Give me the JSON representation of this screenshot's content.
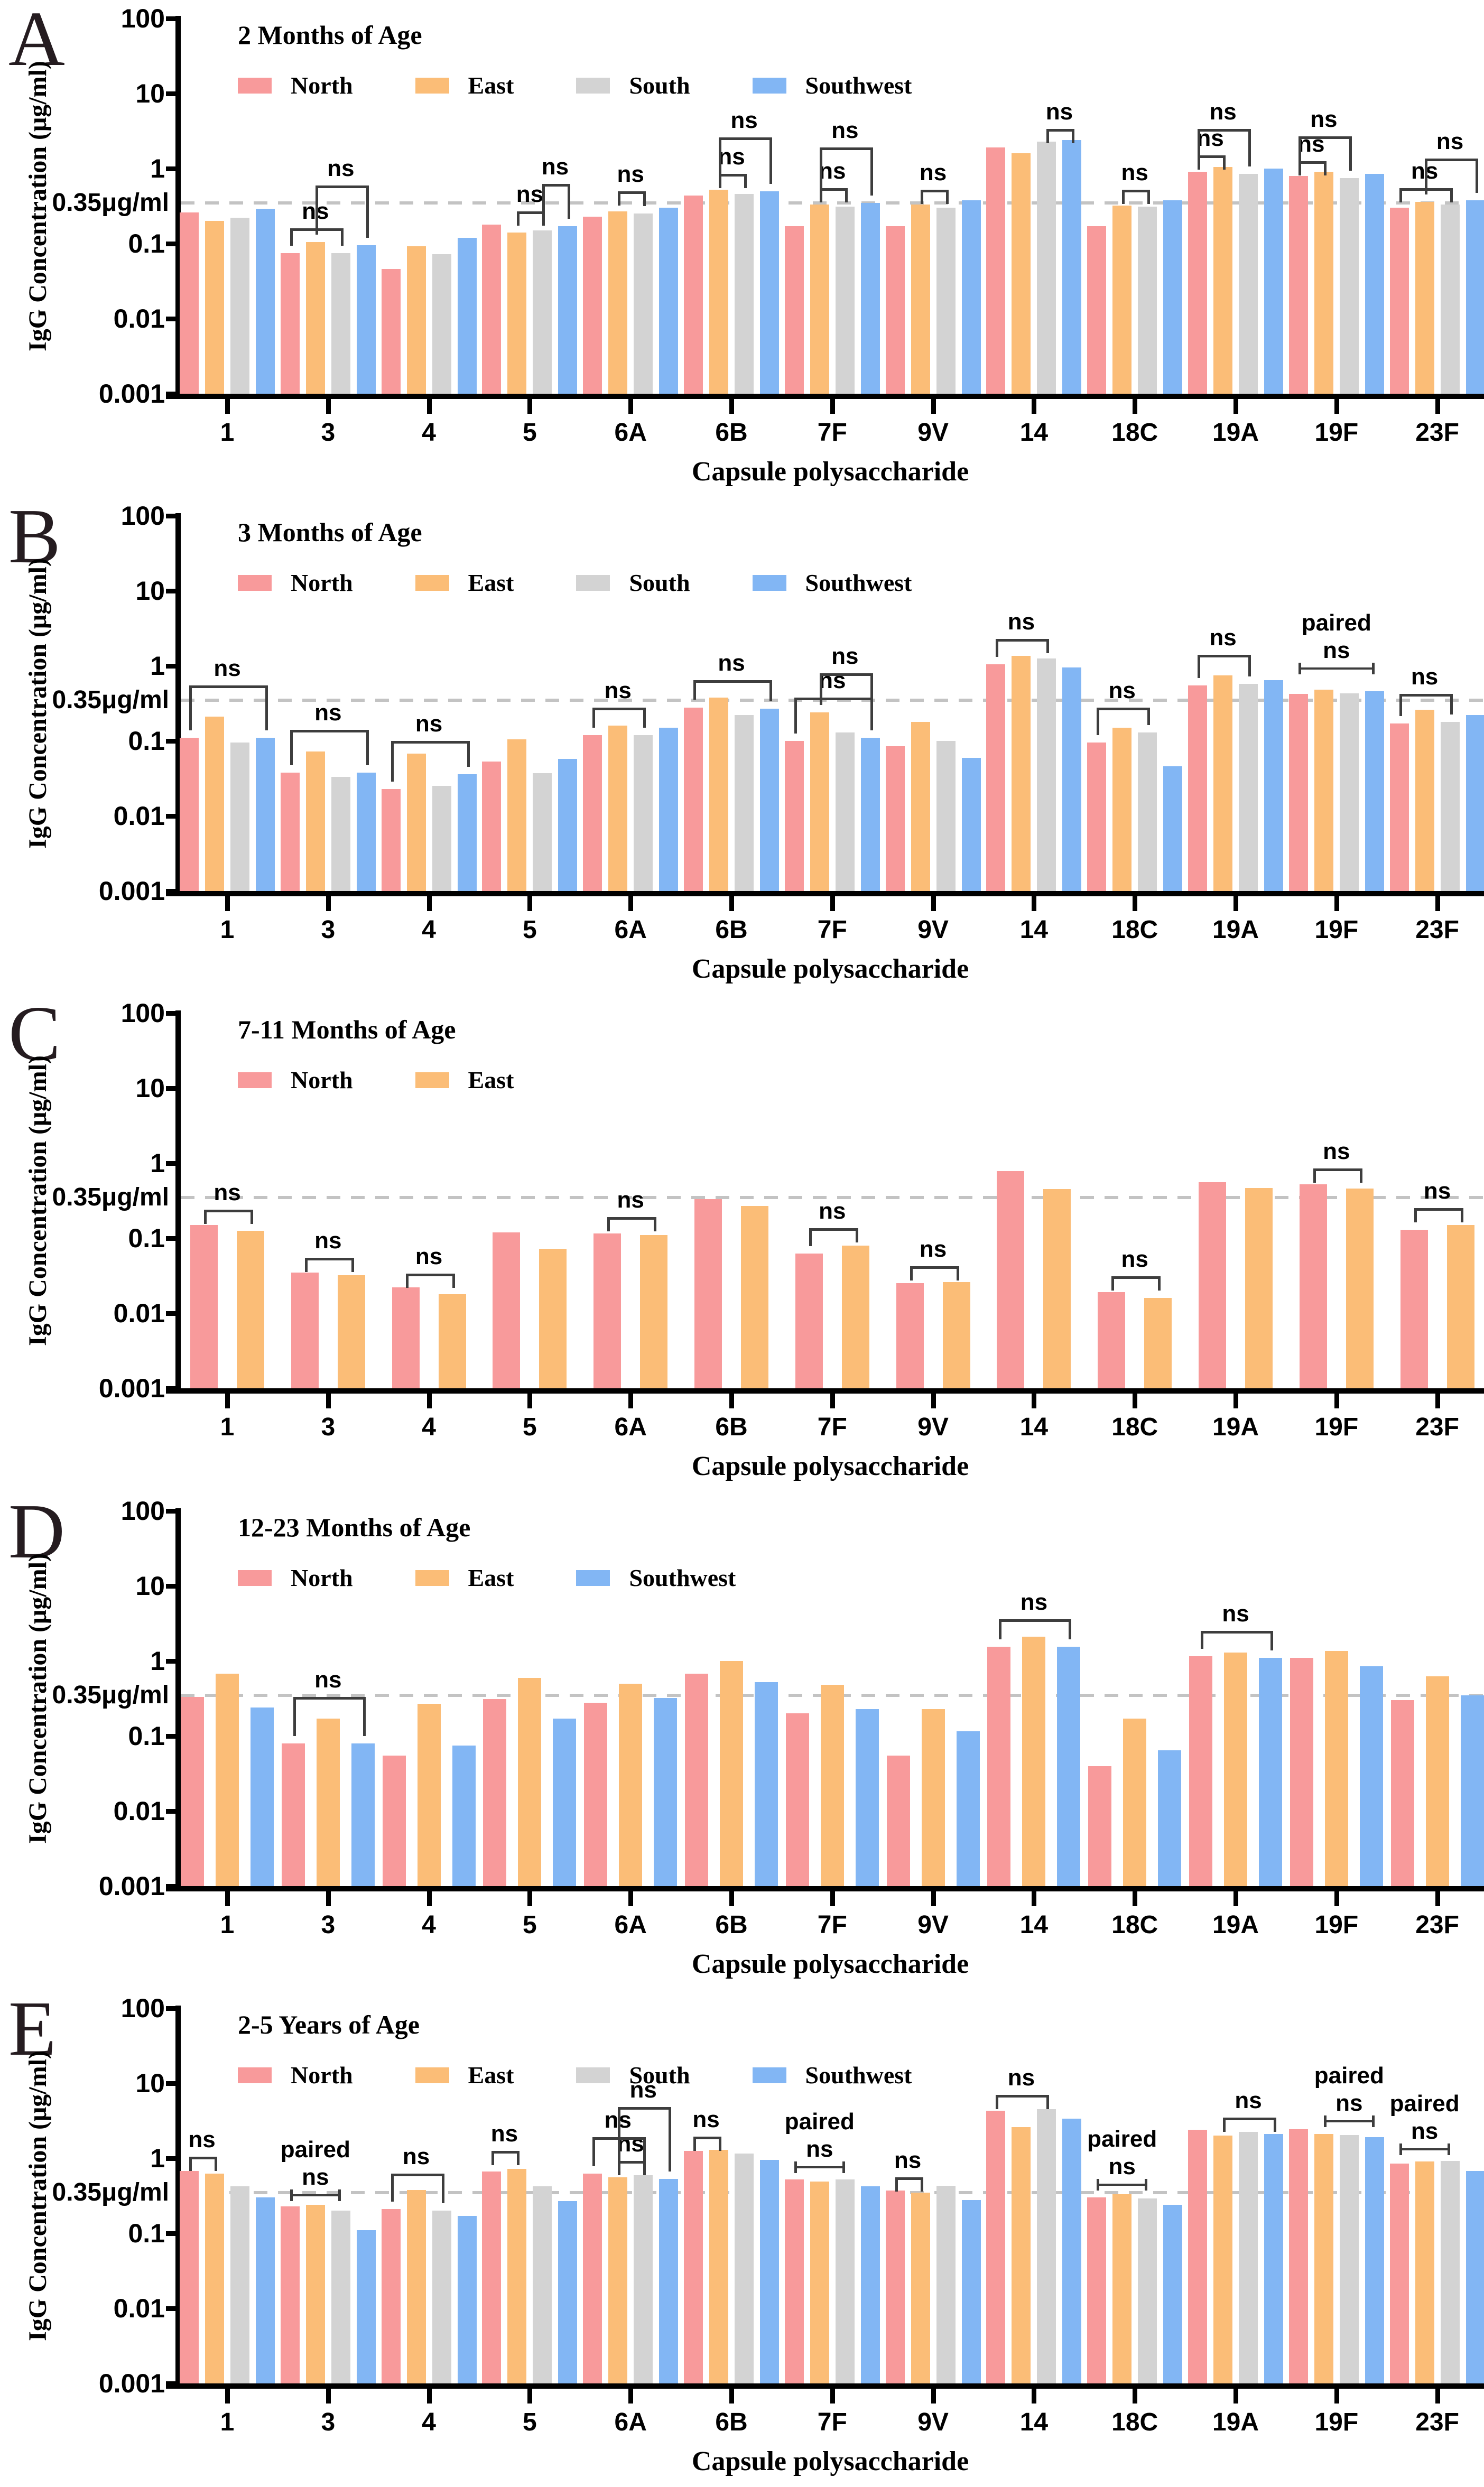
{
  "figure": {
    "y_axis_label": "IgG Concentration (μg/ml)",
    "x_axis_label": "Capsule polysaccharide",
    "threshold_label": "0.35μg/ml",
    "threshold_value": 0.35,
    "y_ticks": [
      "100",
      "10",
      "1",
      "0.1",
      "0.01",
      "0.001"
    ],
    "ylim": [
      0.001,
      100
    ],
    "grid": "off",
    "legend_position": "top-left-inside",
    "categories": [
      "1",
      "3",
      "4",
      "5",
      "6A",
      "6B",
      "7F",
      "9V",
      "14",
      "18C",
      "19A",
      "19F",
      "23F"
    ],
    "series_colors": {
      "North": "#F89A9B",
      "East": "#FBBD77",
      "South": "#D3D3D3",
      "Southwest": "#82B6F4"
    },
    "threshold_color": "#c3c3c3",
    "axis_color": "#000000",
    "annotation_color": "#3d3d3d"
  },
  "chart_data": [
    {
      "panel": "A",
      "type": "bar",
      "title": "2 Months of Age",
      "yscale": "log",
      "categories": [
        "1",
        "3",
        "4",
        "5",
        "6A",
        "6B",
        "7F",
        "9V",
        "14",
        "18C",
        "19A",
        "19F",
        "23F"
      ],
      "series": [
        {
          "name": "North",
          "values": [
            0.26,
            0.075,
            0.046,
            0.18,
            0.23,
            0.44,
            0.17,
            0.17,
            1.9,
            0.17,
            0.9,
            0.8,
            0.3
          ]
        },
        {
          "name": "East",
          "values": [
            0.2,
            0.105,
            0.092,
            0.14,
            0.27,
            0.52,
            0.33,
            0.33,
            1.6,
            0.32,
            1.05,
            0.9,
            0.36
          ]
        },
        {
          "name": "South",
          "values": [
            0.22,
            0.075,
            0.072,
            0.15,
            0.25,
            0.46,
            0.31,
            0.3,
            2.3,
            0.31,
            0.85,
            0.75,
            0.33
          ]
        },
        {
          "name": "Southwest",
          "values": [
            0.29,
            0.095,
            0.12,
            0.17,
            0.3,
            0.5,
            0.35,
            0.38,
            2.4,
            0.38,
            1.0,
            0.85,
            0.38
          ]
        }
      ],
      "annotations": [
        {
          "cat": "3",
          "from": "North",
          "to": "South",
          "y": 0.16,
          "label": "ns",
          "style": "bracket"
        },
        {
          "cat": "3",
          "from": "East",
          "to": "Southwest",
          "y": 0.6,
          "label": "ns",
          "style": "bracket"
        },
        {
          "cat": "5",
          "from": "East",
          "to": "South",
          "y": 0.27,
          "label": "ns",
          "style": "bracket"
        },
        {
          "cat": "5",
          "from": "South",
          "to": "Southwest",
          "y": 0.62,
          "label": "ns",
          "style": "bracket"
        },
        {
          "cat": "6A",
          "from": "East",
          "to": "South",
          "y": 0.5,
          "label": "ns",
          "style": "bracket"
        },
        {
          "cat": "6B",
          "from": "East",
          "to": "South",
          "y": 0.85,
          "label": "ns",
          "style": "bracket"
        },
        {
          "cat": "6B",
          "from": "East",
          "to": "Southwest",
          "y": 2.6,
          "label": "ns",
          "style": "bracket"
        },
        {
          "cat": "7F",
          "from": "East",
          "to": "South",
          "y": 0.55,
          "label": "ns",
          "style": "bracket"
        },
        {
          "cat": "7F",
          "from": "East",
          "to": "Southwest",
          "y": 1.9,
          "label": "ns",
          "style": "bracket"
        },
        {
          "cat": "9V",
          "from": "East",
          "to": "South",
          "y": 0.52,
          "label": "ns",
          "style": "bracket"
        },
        {
          "cat": "14",
          "from": "South",
          "to": "Southwest",
          "y": 3.4,
          "label": "ns",
          "style": "bracket"
        },
        {
          "cat": "18C",
          "from": "East",
          "to": "South",
          "y": 0.52,
          "label": "ns",
          "style": "bracket"
        },
        {
          "cat": "19A",
          "from": "North",
          "to": "East",
          "y": 1.5,
          "label": "ns",
          "style": "bracket"
        },
        {
          "cat": "19A",
          "from": "North",
          "to": "South",
          "y": 3.4,
          "label": "ns",
          "style": "bracket"
        },
        {
          "cat": "19F",
          "from": "North",
          "to": "East",
          "y": 1.25,
          "label": "ns",
          "style": "bracket"
        },
        {
          "cat": "19F",
          "from": "North",
          "to": "South",
          "y": 2.7,
          "label": "ns",
          "style": "bracket"
        },
        {
          "cat": "23F",
          "from": "North",
          "to": "South",
          "y": 0.55,
          "label": "ns",
          "style": "bracket"
        },
        {
          "cat": "23F",
          "from": "East",
          "to": "Southwest",
          "y": 1.35,
          "label": "ns",
          "style": "bracket"
        }
      ]
    },
    {
      "panel": "B",
      "type": "bar",
      "title": "3 Months of Age",
      "yscale": "log",
      "categories": [
        "1",
        "3",
        "4",
        "5",
        "6A",
        "6B",
        "7F",
        "9V",
        "14",
        "18C",
        "19A",
        "19F",
        "23F"
      ],
      "series": [
        {
          "name": "North",
          "values": [
            0.11,
            0.038,
            0.023,
            0.053,
            0.12,
            0.28,
            0.1,
            0.085,
            1.05,
            0.095,
            0.55,
            0.42,
            0.17
          ]
        },
        {
          "name": "East",
          "values": [
            0.21,
            0.072,
            0.068,
            0.105,
            0.16,
            0.38,
            0.24,
            0.18,
            1.35,
            0.15,
            0.75,
            0.48,
            0.26
          ]
        },
        {
          "name": "South",
          "values": [
            0.095,
            0.033,
            0.025,
            0.037,
            0.12,
            0.22,
            0.13,
            0.1,
            1.25,
            0.13,
            0.58,
            0.43,
            0.18
          ]
        },
        {
          "name": "Southwest",
          "values": [
            0.11,
            0.038,
            0.036,
            0.058,
            0.15,
            0.27,
            0.11,
            0.06,
            0.95,
            0.046,
            0.65,
            0.46,
            0.22
          ]
        }
      ],
      "annotations": [
        {
          "cat": "1",
          "from": "North",
          "to": "Southwest",
          "y": 0.55,
          "label": "ns",
          "style": "bracket"
        },
        {
          "cat": "3",
          "from": "North",
          "to": "Southwest",
          "y": 0.14,
          "label": "ns",
          "style": "bracket"
        },
        {
          "cat": "4",
          "from": "North",
          "to": "Southwest",
          "y": 0.1,
          "label": "ns",
          "style": "bracket"
        },
        {
          "cat": "6A",
          "from": "North",
          "to": "South",
          "y": 0.28,
          "label": "ns",
          "style": "bracket"
        },
        {
          "cat": "6B",
          "from": "North",
          "to": "Southwest",
          "y": 0.65,
          "label": "ns",
          "style": "bracket"
        },
        {
          "cat": "7F",
          "from": "North",
          "to": "Southwest",
          "y": 0.38,
          "label": "ns",
          "style": "bracket"
        },
        {
          "cat": "7F",
          "from": "East",
          "to": "Southwest",
          "y": 0.8,
          "label": "ns",
          "style": "bracket"
        },
        {
          "cat": "14",
          "from": "North",
          "to": "South",
          "y": 2.3,
          "label": "ns",
          "style": "bracket"
        },
        {
          "cat": "18C",
          "from": "North",
          "to": "South",
          "y": 0.28,
          "label": "ns",
          "style": "bracket"
        },
        {
          "cat": "19A",
          "from": "North",
          "to": "South",
          "y": 1.4,
          "label": "ns",
          "style": "bracket"
        },
        {
          "cat": "19F",
          "from": "North",
          "to": "Southwest",
          "y": 0.95,
          "label": "paired ns",
          "style": "line"
        },
        {
          "cat": "23F",
          "from": "North",
          "to": "South",
          "y": 0.42,
          "label": "ns",
          "style": "bracket"
        }
      ]
    },
    {
      "panel": "C",
      "type": "bar",
      "title": "7-11 Months of Age",
      "yscale": "log",
      "categories": [
        "1",
        "3",
        "4",
        "5",
        "6A",
        "6B",
        "7F",
        "9V",
        "14",
        "18C",
        "19A",
        "19F",
        "23F"
      ],
      "series": [
        {
          "name": "North",
          "values": [
            0.15,
            0.035,
            0.022,
            0.12,
            0.115,
            0.33,
            0.062,
            0.025,
            0.78,
            0.019,
            0.56,
            0.52,
            0.13
          ]
        },
        {
          "name": "East",
          "values": [
            0.125,
            0.032,
            0.018,
            0.072,
            0.11,
            0.27,
            0.08,
            0.026,
            0.45,
            0.016,
            0.47,
            0.46,
            0.15
          ]
        }
      ],
      "annotations": [
        {
          "cat": "1",
          "from": "North",
          "to": "East",
          "y": 0.24,
          "label": "ns",
          "style": "bracket"
        },
        {
          "cat": "3",
          "from": "North",
          "to": "East",
          "y": 0.055,
          "label": "ns",
          "style": "bracket"
        },
        {
          "cat": "4",
          "from": "North",
          "to": "East",
          "y": 0.034,
          "label": "ns",
          "style": "bracket"
        },
        {
          "cat": "6A",
          "from": "North",
          "to": "East",
          "y": 0.19,
          "label": "ns",
          "style": "bracket"
        },
        {
          "cat": "7F",
          "from": "North",
          "to": "East",
          "y": 0.135,
          "label": "ns",
          "style": "bracket"
        },
        {
          "cat": "9V",
          "from": "North",
          "to": "East",
          "y": 0.042,
          "label": "ns",
          "style": "bracket"
        },
        {
          "cat": "18C",
          "from": "North",
          "to": "East",
          "y": 0.031,
          "label": "ns",
          "style": "bracket"
        },
        {
          "cat": "19F",
          "from": "North",
          "to": "East",
          "y": 0.85,
          "label": "ns",
          "style": "bracket"
        },
        {
          "cat": "23F",
          "from": "North",
          "to": "East",
          "y": 0.25,
          "label": "ns",
          "style": "bracket"
        }
      ]
    },
    {
      "panel": "D",
      "type": "bar",
      "title": "12-23 Months of Age",
      "yscale": "log",
      "categories": [
        "1",
        "3",
        "4",
        "5",
        "6A",
        "6B",
        "7F",
        "9V",
        "14",
        "18C",
        "19A",
        "19F",
        "23F"
      ],
      "series": [
        {
          "name": "North",
          "values": [
            0.33,
            0.08,
            0.055,
            0.31,
            0.28,
            0.68,
            0.2,
            0.055,
            1.55,
            0.04,
            1.15,
            1.1,
            0.3
          ]
        },
        {
          "name": "East",
          "values": [
            0.68,
            0.17,
            0.27,
            0.6,
            0.5,
            1.0,
            0.48,
            0.23,
            2.1,
            0.17,
            1.3,
            1.35,
            0.62
          ]
        },
        {
          "name": "Southwest",
          "values": [
            0.24,
            0.08,
            0.075,
            0.17,
            0.32,
            0.52,
            0.23,
            0.115,
            1.55,
            0.065,
            1.1,
            0.85,
            0.35
          ]
        }
      ],
      "annotations": [
        {
          "cat": "3",
          "from": "North",
          "to": "Southwest",
          "y": 0.33,
          "label": "ns",
          "style": "bracket"
        },
        {
          "cat": "14",
          "from": "North",
          "to": "Southwest",
          "y": 3.6,
          "label": "ns",
          "style": "bracket"
        },
        {
          "cat": "19A",
          "from": "North",
          "to": "Southwest",
          "y": 2.5,
          "label": "ns",
          "style": "bracket"
        }
      ]
    },
    {
      "panel": "E",
      "type": "bar",
      "title": "2-5 Years of Age",
      "yscale": "log",
      "categories": [
        "1",
        "3",
        "4",
        "5",
        "6A",
        "6B",
        "7F",
        "9V",
        "14",
        "18C",
        "19A",
        "19F",
        "23F"
      ],
      "series": [
        {
          "name": "North",
          "values": [
            0.68,
            0.23,
            0.21,
            0.67,
            0.62,
            1.25,
            0.52,
            0.37,
            4.3,
            0.3,
            2.4,
            2.45,
            0.85
          ]
        },
        {
          "name": "East",
          "values": [
            0.62,
            0.24,
            0.38,
            0.72,
            0.56,
            1.3,
            0.49,
            0.35,
            2.6,
            0.33,
            2.0,
            2.1,
            0.9
          ]
        },
        {
          "name": "South",
          "values": [
            0.42,
            0.2,
            0.2,
            0.42,
            0.6,
            1.15,
            0.52,
            0.43,
            4.5,
            0.29,
            2.25,
            2.05,
            0.92
          ]
        },
        {
          "name": "Southwest",
          "values": [
            0.3,
            0.11,
            0.17,
            0.27,
            0.53,
            0.95,
            0.42,
            0.28,
            3.4,
            0.24,
            2.1,
            1.9,
            0.68
          ]
        }
      ],
      "annotations": [
        {
          "cat": "1",
          "from": "North",
          "to": "East",
          "y": 1.05,
          "label": "ns",
          "style": "bracket"
        },
        {
          "cat": "3",
          "from": "North",
          "to": "South",
          "y": 0.33,
          "label": "paired ns",
          "style": "line"
        },
        {
          "cat": "4",
          "from": "North",
          "to": "South",
          "y": 0.62,
          "label": "ns",
          "style": "bracket"
        },
        {
          "cat": "5",
          "from": "North",
          "to": "East",
          "y": 1.25,
          "label": "ns",
          "style": "bracket"
        },
        {
          "cat": "6A",
          "from": "East",
          "to": "South",
          "y": 0.92,
          "label": "ns",
          "style": "bracket"
        },
        {
          "cat": "6A",
          "from": "North",
          "to": "South",
          "y": 1.9,
          "label": "ns",
          "style": "bracket"
        },
        {
          "cat": "6A",
          "from": "East",
          "to": "Southwest",
          "y": 4.8,
          "label": "ns",
          "style": "bracket"
        },
        {
          "cat": "6B",
          "from": "North",
          "to": "East",
          "y": 1.95,
          "label": "ns",
          "style": "bracket"
        },
        {
          "cat": "7F",
          "from": "North",
          "to": "South",
          "y": 0.78,
          "label": "paired ns",
          "style": "line"
        },
        {
          "cat": "9V",
          "from": "North",
          "to": "East",
          "y": 0.56,
          "label": "ns",
          "style": "bracket"
        },
        {
          "cat": "14",
          "from": "North",
          "to": "South",
          "y": 7.0,
          "label": "ns",
          "style": "bracket"
        },
        {
          "cat": "18C",
          "from": "North",
          "to": "South",
          "y": 0.46,
          "label": "paired ns",
          "style": "line"
        },
        {
          "cat": "19A",
          "from": "East",
          "to": "Southwest",
          "y": 3.5,
          "label": "ns",
          "style": "bracket"
        },
        {
          "cat": "19F",
          "from": "East",
          "to": "Southwest",
          "y": 3.2,
          "label": "paired ns",
          "style": "line"
        },
        {
          "cat": "23F",
          "from": "North",
          "to": "South",
          "y": 1.35,
          "label": "paired ns",
          "style": "line"
        }
      ]
    }
  ]
}
